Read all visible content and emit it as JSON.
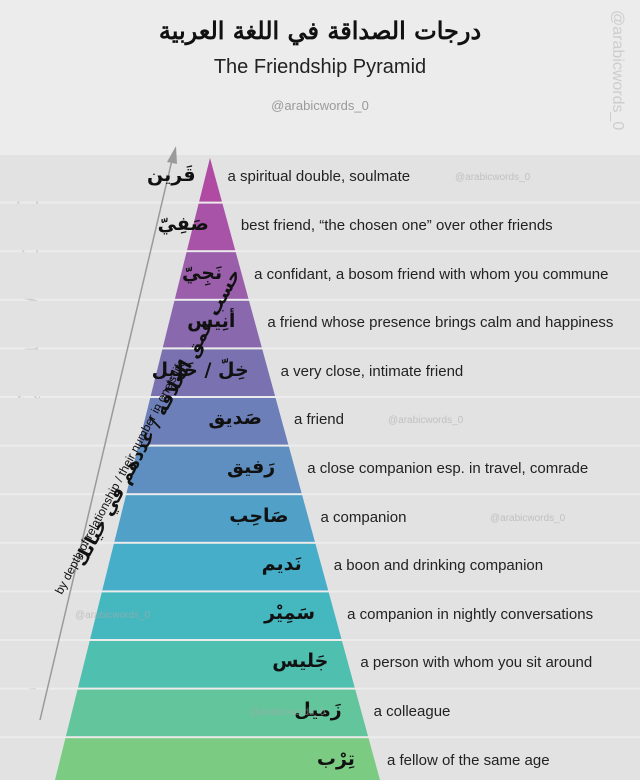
{
  "title_ar": "درجات الصداقة في اللغة العربية",
  "title_en": "The Friendship Pyramid",
  "handle": "@arabicwords_0",
  "side_label_ar": "حسب عمق العلاقة / عددهم في حياتك",
  "side_label_en": "by depth of relationship / their number in one's life",
  "levels": [
    {
      "ar": "قَرين",
      "en": "a spiritual double, soulmate",
      "color": "#b04aa3"
    },
    {
      "ar": "صَفِيّ",
      "en": "best friend, “the chosen one” over other friends",
      "color": "#a853a8"
    },
    {
      "ar": "نَجِيّ",
      "en": "a confidant, a bosom friend with whom you commune",
      "color": "#9a5eab"
    },
    {
      "ar": "أنِيس",
      "en": "a friend whose presence brings calm and happiness",
      "color": "#8a68ad"
    },
    {
      "ar": "خِلّ / خَليل",
      "en": "a very close, intimate friend",
      "color": "#7a72b0"
    },
    {
      "ar": "صَديق",
      "en": "a friend",
      "color": "#6c7fb8"
    },
    {
      "ar": "رَفيق",
      "en": "a close companion esp. in travel, comrade",
      "color": "#5e8fc0"
    },
    {
      "ar": "صَاحِب",
      "en": "a companion",
      "color": "#50a0c8"
    },
    {
      "ar": "نَديم",
      "en": "a boon and drinking companion",
      "color": "#46aec8"
    },
    {
      "ar": "سَمِيْر",
      "en": "a companion in nightly conversations",
      "color": "#45b7bf"
    },
    {
      "ar": "جَليس",
      "en": "a person with whom you sit around",
      "color": "#4fbfaf"
    },
    {
      "ar": "زَميل",
      "en": "a colleague",
      "color": "#62c59c"
    },
    {
      "ar": "تِرْب",
      "en": "a fellow of the same age",
      "color": "#7bcb82"
    }
  ]
}
